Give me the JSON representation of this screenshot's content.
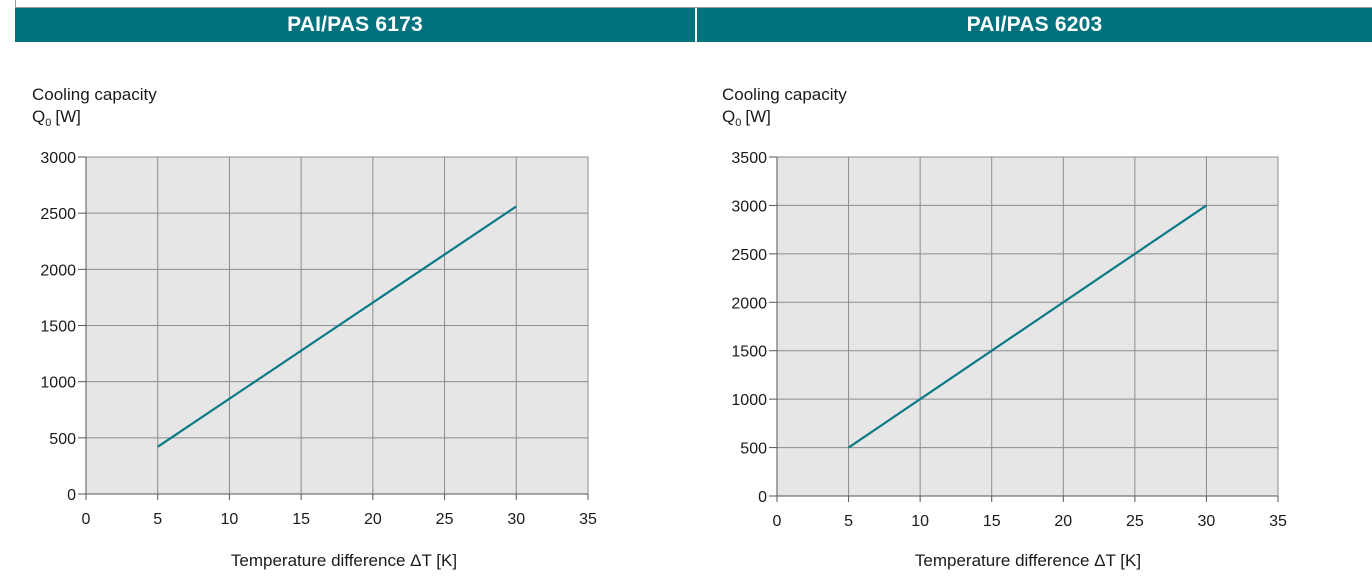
{
  "headers": [
    "PAI/PAS 6173",
    "PAI/PAS 6203"
  ],
  "chart_data": [
    {
      "type": "line",
      "title": "PAI/PAS 6173",
      "ylabel_line1": "Cooling capacity",
      "ylabel_symbol": "Q",
      "ylabel_subscript": "0",
      "ylabel_unit": "[W]",
      "xlabel": "Temperature difference ΔT [K]",
      "xlim": [
        0,
        35
      ],
      "ylim": [
        0,
        3000
      ],
      "xticks": [
        0,
        5,
        10,
        15,
        20,
        25,
        30,
        35
      ],
      "yticks": [
        0,
        500,
        1000,
        1500,
        2000,
        2500,
        3000
      ],
      "grid": true,
      "line_color": "#0b7a86",
      "plot_background": "#e6e6e6",
      "series": [
        {
          "x": [
            5,
            30
          ],
          "values": [
            420,
            2560
          ]
        }
      ]
    },
    {
      "type": "line",
      "title": "PAI/PAS 6203",
      "ylabel_line1": "Cooling capacity",
      "ylabel_symbol": "Q",
      "ylabel_subscript": "0",
      "ylabel_unit": "[W]",
      "xlabel": "Temperature difference ΔT [K]",
      "xlim": [
        0,
        35
      ],
      "ylim": [
        0,
        3500
      ],
      "xticks": [
        0,
        5,
        10,
        15,
        20,
        25,
        30,
        35
      ],
      "yticks": [
        0,
        500,
        1000,
        1500,
        2000,
        2500,
        3000,
        3500
      ],
      "grid": true,
      "line_color": "#0b7a86",
      "plot_background": "#e6e6e6",
      "series": [
        {
          "x": [
            5,
            30
          ],
          "values": [
            500,
            3000
          ]
        }
      ]
    }
  ]
}
